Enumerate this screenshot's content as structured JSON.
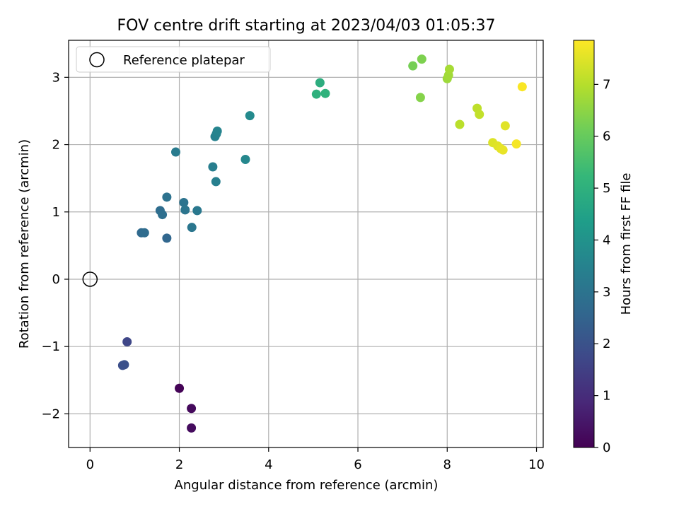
{
  "chart_data": {
    "type": "scatter",
    "title": "FOV centre drift starting at 2023/04/03 01:05:37",
    "xlabel": "Angular distance from reference (arcmin)",
    "ylabel": "Rotation from reference (arcmin)",
    "xlim": [
      -0.48,
      10.15
    ],
    "ylim": [
      -2.5,
      3.55
    ],
    "xticks": [
      0,
      2,
      4,
      6,
      8,
      10
    ],
    "xtick_labels": [
      "0",
      "2",
      "4",
      "6",
      "8",
      "10"
    ],
    "yticks": [
      -2,
      -1,
      0,
      1,
      2,
      3
    ],
    "ytick_labels": [
      "−2",
      "−1",
      "0",
      "1",
      "2",
      "3"
    ],
    "grid": true,
    "legend_position": "upper-left",
    "reference_point": {
      "label": "Reference platepar",
      "x": 0,
      "y": 0
    },
    "colorbar": {
      "label": "Hours from first FF file",
      "colormap": "viridis",
      "range": [
        0,
        7.85
      ],
      "ticks": [
        0,
        1,
        2,
        3,
        4,
        5,
        6,
        7
      ],
      "tick_labels": [
        "0",
        "1",
        "2",
        "3",
        "4",
        "5",
        "6",
        "7"
      ]
    },
    "series": [
      {
        "points": [
          {
            "x": 2.0,
            "y": -1.62,
            "hours": 0.05
          },
          {
            "x": 2.27,
            "y": -1.92,
            "hours": 0.2
          },
          {
            "x": 2.27,
            "y": -2.21,
            "hours": 0.25
          },
          {
            "x": 0.83,
            "y": -0.93,
            "hours": 1.7
          },
          {
            "x": 0.73,
            "y": -1.28,
            "hours": 1.9
          },
          {
            "x": 0.77,
            "y": -1.27,
            "hours": 1.95
          },
          {
            "x": 1.72,
            "y": 0.61,
            "hours": 2.6
          },
          {
            "x": 1.15,
            "y": 0.69,
            "hours": 2.7
          },
          {
            "x": 1.22,
            "y": 0.69,
            "hours": 2.75
          },
          {
            "x": 1.57,
            "y": 1.02,
            "hours": 2.8
          },
          {
            "x": 1.62,
            "y": 0.96,
            "hours": 2.85
          },
          {
            "x": 1.72,
            "y": 1.22,
            "hours": 2.95
          },
          {
            "x": 2.1,
            "y": 1.14,
            "hours": 3.0
          },
          {
            "x": 2.13,
            "y": 1.03,
            "hours": 3.05
          },
          {
            "x": 2.28,
            "y": 0.77,
            "hours": 3.1
          },
          {
            "x": 2.4,
            "y": 1.02,
            "hours": 3.15
          },
          {
            "x": 1.92,
            "y": 1.89,
            "hours": 3.25
          },
          {
            "x": 2.75,
            "y": 1.67,
            "hours": 3.35
          },
          {
            "x": 2.82,
            "y": 1.45,
            "hours": 3.4
          },
          {
            "x": 2.8,
            "y": 2.12,
            "hours": 3.45
          },
          {
            "x": 2.83,
            "y": 2.16,
            "hours": 3.5
          },
          {
            "x": 2.85,
            "y": 2.2,
            "hours": 3.55
          },
          {
            "x": 3.48,
            "y": 1.78,
            "hours": 3.65
          },
          {
            "x": 3.58,
            "y": 2.43,
            "hours": 3.75
          },
          {
            "x": 5.15,
            "y": 2.92,
            "hours": 4.9
          },
          {
            "x": 5.07,
            "y": 2.75,
            "hours": 5.0
          },
          {
            "x": 5.27,
            "y": 2.76,
            "hours": 5.05
          },
          {
            "x": 7.23,
            "y": 3.17,
            "hours": 6.2
          },
          {
            "x": 7.43,
            "y": 3.27,
            "hours": 6.3
          },
          {
            "x": 7.4,
            "y": 2.7,
            "hours": 6.4
          },
          {
            "x": 8.0,
            "y": 2.98,
            "hours": 6.7
          },
          {
            "x": 8.03,
            "y": 3.03,
            "hours": 6.75
          },
          {
            "x": 8.05,
            "y": 3.12,
            "hours": 6.8
          },
          {
            "x": 8.28,
            "y": 2.3,
            "hours": 7.05
          },
          {
            "x": 8.67,
            "y": 2.54,
            "hours": 7.1
          },
          {
            "x": 8.72,
            "y": 2.45,
            "hours": 7.15
          },
          {
            "x": 9.02,
            "y": 2.03,
            "hours": 7.45
          },
          {
            "x": 9.13,
            "y": 1.98,
            "hours": 7.5
          },
          {
            "x": 9.2,
            "y": 1.94,
            "hours": 7.55
          },
          {
            "x": 9.25,
            "y": 1.92,
            "hours": 7.6
          },
          {
            "x": 9.3,
            "y": 2.28,
            "hours": 7.5
          },
          {
            "x": 9.55,
            "y": 2.01,
            "hours": 7.75
          },
          {
            "x": 9.68,
            "y": 2.86,
            "hours": 7.8
          }
        ]
      }
    ]
  }
}
